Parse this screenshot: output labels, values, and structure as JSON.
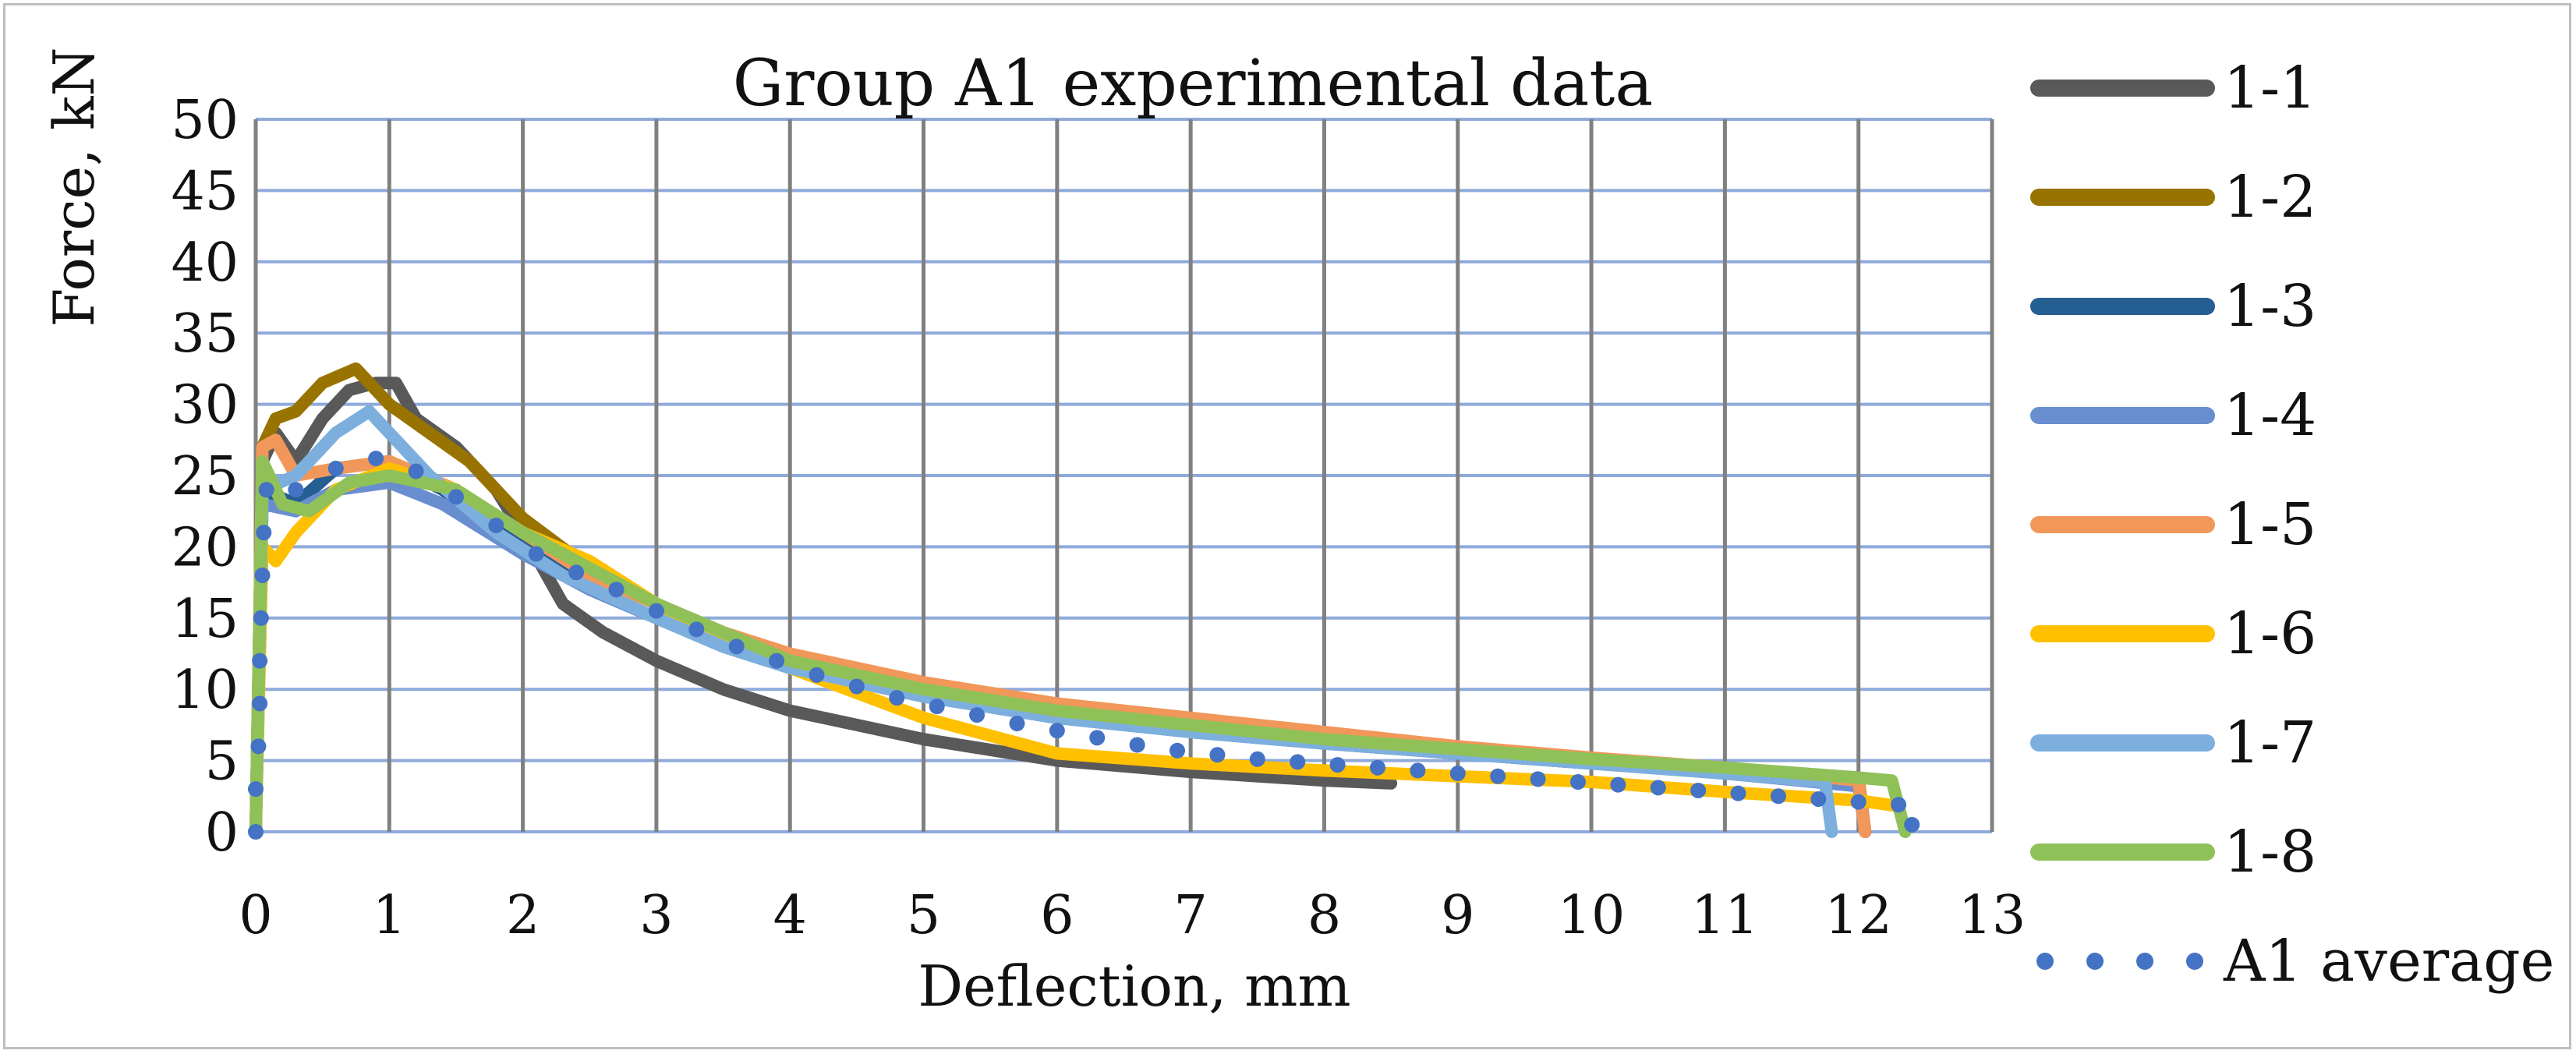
{
  "chart_data": {
    "type": "line",
    "title": "Group A1 experimental data",
    "xlabel": "Deflection, mm",
    "ylabel": "Force, kN",
    "xlim": [
      0,
      13
    ],
    "ylim": [
      0,
      50
    ],
    "x_ticks": [
      "0",
      "1",
      "2",
      "3",
      "4",
      "5",
      "6",
      "7",
      "8",
      "9",
      "10",
      "11",
      "12",
      "13"
    ],
    "y_ticks": [
      "0",
      "5",
      "10",
      "15",
      "20",
      "25",
      "30",
      "35",
      "40",
      "45",
      "50"
    ],
    "grid": true,
    "legend_position": "right",
    "series": [
      {
        "name": "1-1",
        "color": "#595959",
        "style": "solid",
        "points": [
          [
            0,
            0
          ],
          [
            0.05,
            26
          ],
          [
            0.15,
            28
          ],
          [
            0.3,
            26
          ],
          [
            0.5,
            29
          ],
          [
            0.7,
            31
          ],
          [
            0.9,
            31.5
          ],
          [
            1.05,
            31.5
          ],
          [
            1.2,
            29
          ],
          [
            1.5,
            27
          ],
          [
            1.8,
            24
          ],
          [
            2.0,
            21
          ],
          [
            2.3,
            16
          ],
          [
            2.6,
            14
          ],
          [
            3.0,
            12
          ],
          [
            3.5,
            10
          ],
          [
            4.0,
            8.5
          ],
          [
            5.0,
            6.5
          ],
          [
            6.0,
            5
          ],
          [
            7.0,
            4.2
          ],
          [
            8.0,
            3.6
          ],
          [
            8.5,
            3.4
          ]
        ]
      },
      {
        "name": "1-2",
        "color": "#997300",
        "style": "solid",
        "points": [
          [
            0,
            0
          ],
          [
            0.05,
            27
          ],
          [
            0.15,
            29
          ],
          [
            0.3,
            29.5
          ],
          [
            0.5,
            31.5
          ],
          [
            0.75,
            32.5
          ],
          [
            1.0,
            30
          ],
          [
            1.3,
            28
          ],
          [
            1.6,
            26
          ],
          [
            2.0,
            22
          ],
          [
            2.5,
            18.5
          ],
          [
            3.0,
            16
          ],
          [
            3.5,
            14
          ],
          [
            4.0,
            12
          ],
          [
            5.0,
            10
          ],
          [
            6.0,
            8.5
          ],
          [
            7.0,
            7.5
          ],
          [
            8.0,
            6.5
          ],
          [
            9.0,
            5.7
          ],
          [
            10.0,
            5
          ],
          [
            11.0,
            4.4
          ],
          [
            12.0,
            3.8
          ],
          [
            12.05,
            0
          ]
        ]
      },
      {
        "name": "1-3",
        "color": "#255e91",
        "style": "solid",
        "points": [
          [
            0,
            0
          ],
          [
            0.05,
            24
          ],
          [
            0.3,
            23
          ],
          [
            0.6,
            25.5
          ],
          [
            1.0,
            26
          ],
          [
            1.4,
            24
          ],
          [
            2.0,
            20
          ],
          [
            2.5,
            17
          ],
          [
            3.0,
            15
          ],
          [
            3.5,
            13
          ],
          [
            4.0,
            11.5
          ],
          [
            5.0,
            9.5
          ],
          [
            6.0,
            8
          ],
          [
            7.0,
            7
          ],
          [
            8.0,
            6.2
          ],
          [
            9.0,
            5.5
          ],
          [
            10.0,
            4.8
          ],
          [
            11.0,
            4.2
          ],
          [
            12.0,
            3.4
          ],
          [
            12.05,
            0
          ]
        ]
      },
      {
        "name": "1-4",
        "color": "#698ed0",
        "style": "solid",
        "points": [
          [
            0,
            0
          ],
          [
            0.05,
            23
          ],
          [
            0.3,
            22.5
          ],
          [
            0.6,
            24
          ],
          [
            1.0,
            24.5
          ],
          [
            1.4,
            23
          ],
          [
            2.0,
            19.5
          ],
          [
            2.5,
            17
          ],
          [
            3.0,
            15
          ],
          [
            3.5,
            13
          ],
          [
            4.0,
            11.5
          ],
          [
            5.0,
            9.5
          ],
          [
            6.0,
            8
          ],
          [
            7.0,
            7
          ],
          [
            8.0,
            6.2
          ],
          [
            9.0,
            5.5
          ],
          [
            10.0,
            4.8
          ],
          [
            11.0,
            4.1
          ],
          [
            12.0,
            3.2
          ],
          [
            12.05,
            0
          ]
        ]
      },
      {
        "name": "1-5",
        "color": "#f1975a",
        "style": "solid",
        "points": [
          [
            0,
            0
          ],
          [
            0.05,
            27
          ],
          [
            0.15,
            27.5
          ],
          [
            0.3,
            25
          ],
          [
            0.6,
            25.5
          ],
          [
            1.0,
            26
          ],
          [
            1.5,
            24
          ],
          [
            2.0,
            21
          ],
          [
            2.5,
            18
          ],
          [
            3.0,
            16
          ],
          [
            3.5,
            14
          ],
          [
            4.0,
            12.5
          ],
          [
            5.0,
            10.5
          ],
          [
            6.0,
            9
          ],
          [
            7.0,
            8
          ],
          [
            8.0,
            7
          ],
          [
            9.0,
            6
          ],
          [
            10.0,
            5.2
          ],
          [
            11.0,
            4.5
          ],
          [
            12.0,
            3.6
          ],
          [
            12.05,
            0
          ]
        ]
      },
      {
        "name": "1-6",
        "color": "#ffc000",
        "style": "solid",
        "points": [
          [
            0,
            0
          ],
          [
            0.05,
            20
          ],
          [
            0.15,
            19
          ],
          [
            0.3,
            21
          ],
          [
            0.6,
            24
          ],
          [
            1.0,
            25.5
          ],
          [
            1.5,
            24
          ],
          [
            2.0,
            21
          ],
          [
            2.5,
            19
          ],
          [
            3.0,
            16
          ],
          [
            3.5,
            13.5
          ],
          [
            4.0,
            11.5
          ],
          [
            5.0,
            8
          ],
          [
            6.0,
            5.5
          ],
          [
            7.0,
            4.8
          ],
          [
            8.0,
            4.3
          ],
          [
            9.0,
            3.9
          ],
          [
            10.0,
            3.5
          ],
          [
            11.0,
            2.8
          ],
          [
            12.0,
            2.2
          ],
          [
            12.3,
            1.8
          ]
        ]
      },
      {
        "name": "1-7",
        "color": "#7cafdd",
        "style": "solid",
        "points": [
          [
            0,
            0
          ],
          [
            0.05,
            24
          ],
          [
            0.3,
            25
          ],
          [
            0.6,
            28
          ],
          [
            0.85,
            29.5
          ],
          [
            1.0,
            28
          ],
          [
            1.3,
            25
          ],
          [
            1.8,
            21
          ],
          [
            2.3,
            18
          ],
          [
            3.0,
            15
          ],
          [
            3.5,
            13
          ],
          [
            4.0,
            11.5
          ],
          [
            5.0,
            9.5
          ],
          [
            6.0,
            8
          ],
          [
            7.0,
            7
          ],
          [
            8.0,
            6.2
          ],
          [
            9.0,
            5.5
          ],
          [
            10.0,
            4.8
          ],
          [
            11.0,
            4.1
          ],
          [
            11.75,
            3.5
          ],
          [
            11.8,
            0
          ]
        ]
      },
      {
        "name": "1-8",
        "color": "#8fc158",
        "style": "solid",
        "points": [
          [
            0,
            0
          ],
          [
            0.05,
            26
          ],
          [
            0.2,
            23
          ],
          [
            0.4,
            22.5
          ],
          [
            0.7,
            24.5
          ],
          [
            1.0,
            25
          ],
          [
            1.5,
            24
          ],
          [
            2.0,
            21
          ],
          [
            2.5,
            18.5
          ],
          [
            3.0,
            16
          ],
          [
            3.5,
            14
          ],
          [
            4.0,
            12
          ],
          [
            5.0,
            10
          ],
          [
            6.0,
            8.5
          ],
          [
            7.0,
            7.5
          ],
          [
            8.0,
            6.5
          ],
          [
            9.0,
            5.8
          ],
          [
            10.0,
            5.1
          ],
          [
            11.0,
            4.5
          ],
          [
            12.0,
            3.8
          ],
          [
            12.25,
            3.6
          ],
          [
            12.35,
            0
          ]
        ]
      },
      {
        "name": "A1 average",
        "color": "#4472c4",
        "style": "dotted",
        "points": [
          [
            0,
            0
          ],
          [
            0.0,
            3
          ],
          [
            0.02,
            6
          ],
          [
            0.03,
            9
          ],
          [
            0.03,
            12
          ],
          [
            0.04,
            15
          ],
          [
            0.05,
            18
          ],
          [
            0.06,
            21
          ],
          [
            0.08,
            24
          ],
          [
            0.3,
            24
          ],
          [
            0.6,
            25.5
          ],
          [
            0.9,
            26.2
          ],
          [
            1.2,
            25.3
          ],
          [
            1.5,
            23.5
          ],
          [
            1.8,
            21.5
          ],
          [
            2.1,
            19.5
          ],
          [
            2.4,
            18.2
          ],
          [
            2.7,
            17
          ],
          [
            3.0,
            15.5
          ],
          [
            3.3,
            14.2
          ],
          [
            3.6,
            13
          ],
          [
            3.9,
            12
          ],
          [
            4.2,
            11
          ],
          [
            4.5,
            10.2
          ],
          [
            4.8,
            9.4
          ],
          [
            5.1,
            8.8
          ],
          [
            5.4,
            8.2
          ],
          [
            5.7,
            7.6
          ],
          [
            6.0,
            7.1
          ],
          [
            6.3,
            6.6
          ],
          [
            6.6,
            6.1
          ],
          [
            6.9,
            5.7
          ],
          [
            7.2,
            5.4
          ],
          [
            7.5,
            5.1
          ],
          [
            7.8,
            4.9
          ],
          [
            8.1,
            4.7
          ],
          [
            8.4,
            4.5
          ],
          [
            8.7,
            4.3
          ],
          [
            9.0,
            4.1
          ],
          [
            9.3,
            3.9
          ],
          [
            9.6,
            3.7
          ],
          [
            9.9,
            3.5
          ],
          [
            10.2,
            3.3
          ],
          [
            10.5,
            3.1
          ],
          [
            10.8,
            2.9
          ],
          [
            11.1,
            2.7
          ],
          [
            11.4,
            2.5
          ],
          [
            11.7,
            2.3
          ],
          [
            12.0,
            2.1
          ],
          [
            12.3,
            1.9
          ],
          [
            12.4,
            0.5
          ]
        ]
      }
    ]
  }
}
